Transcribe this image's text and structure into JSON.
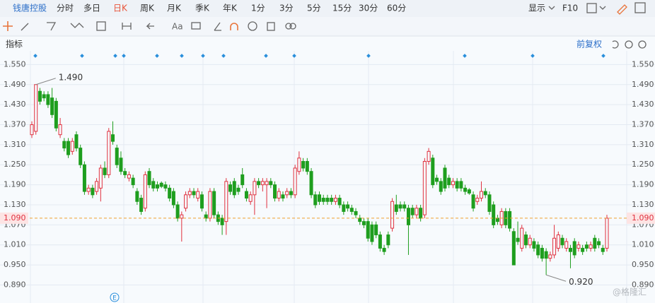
{
  "toolbar": {
    "stock": "钱唐控股",
    "periods": [
      "分时",
      "多日",
      "日K",
      "周K",
      "月K",
      "季K",
      "年K",
      "1分",
      "3分",
      "5分",
      "15分",
      "30分",
      "60分"
    ],
    "display": "显示",
    "f10": "F10",
    "text_tool": "Aa"
  },
  "indicator_bar": {
    "label": "指标",
    "adjust": "前复权"
  },
  "watermark": "@格隆汇",
  "event_marker": "E",
  "chart_data": {
    "type": "candlestick",
    "up_color": "#e0303e",
    "down_color": "#1e9e1e",
    "grid": true,
    "ylim": [
      0.836,
      1.591
    ],
    "yticks": [
      {
        "value": 0.89,
        "label": "0.890"
      },
      {
        "value": 0.95,
        "label": "0.950"
      },
      {
        "value": 1.01,
        "label": "1.010"
      },
      {
        "value": 1.07,
        "label": "1.070"
      },
      {
        "value": 1.13,
        "label": "1.130"
      },
      {
        "value": 1.19,
        "label": "1.190"
      },
      {
        "value": 1.25,
        "label": "1.250"
      },
      {
        "value": 1.31,
        "label": "1.310"
      },
      {
        "value": 1.37,
        "label": "1.370"
      },
      {
        "value": 1.43,
        "label": "1.430"
      },
      {
        "value": 1.49,
        "label": "1.490"
      },
      {
        "value": 1.55,
        "label": "1.550"
      }
    ],
    "last_price": {
      "value": 1.09,
      "label": "1.090"
    },
    "high_label": {
      "value": 1.49,
      "label": "1.490"
    },
    "low_label": {
      "value": 0.92,
      "label": "0.920"
    },
    "ohlc": [
      [
        1.34,
        1.38,
        1.33,
        1.37
      ],
      [
        1.35,
        1.49,
        1.34,
        1.49
      ],
      [
        1.47,
        1.48,
        1.43,
        1.44
      ],
      [
        1.46,
        1.47,
        1.44,
        1.45
      ],
      [
        1.46,
        1.47,
        1.42,
        1.43
      ],
      [
        1.45,
        1.48,
        1.39,
        1.4
      ],
      [
        1.44,
        1.45,
        1.35,
        1.36
      ],
      [
        1.34,
        1.39,
        1.33,
        1.37
      ],
      [
        1.32,
        1.33,
        1.29,
        1.3
      ],
      [
        1.32,
        1.33,
        1.27,
        1.28
      ],
      [
        1.29,
        1.33,
        1.28,
        1.32
      ],
      [
        1.34,
        1.35,
        1.29,
        1.3
      ],
      [
        1.3,
        1.31,
        1.24,
        1.25
      ],
      [
        1.25,
        1.26,
        1.16,
        1.17
      ],
      [
        1.17,
        1.19,
        1.16,
        1.18
      ],
      [
        1.18,
        1.19,
        1.15,
        1.16
      ],
      [
        1.17,
        1.21,
        1.16,
        1.2
      ],
      [
        1.18,
        1.25,
        1.14,
        1.24
      ],
      [
        1.24,
        1.26,
        1.21,
        1.22
      ],
      [
        1.22,
        1.36,
        1.21,
        1.35
      ],
      [
        1.34,
        1.38,
        1.31,
        1.32
      ],
      [
        1.3,
        1.31,
        1.24,
        1.25
      ],
      [
        1.27,
        1.29,
        1.22,
        1.23
      ],
      [
        1.23,
        1.24,
        1.21,
        1.22
      ],
      [
        1.21,
        1.23,
        1.2,
        1.22
      ],
      [
        1.21,
        1.22,
        1.18,
        1.19
      ],
      [
        1.17,
        1.18,
        1.13,
        1.14
      ],
      [
        1.15,
        1.16,
        1.1,
        1.11
      ],
      [
        1.12,
        1.23,
        1.11,
        1.22
      ],
      [
        1.23,
        1.24,
        1.18,
        1.19
      ],
      [
        1.2,
        1.21,
        1.17,
        1.18
      ],
      [
        1.19,
        1.2,
        1.17,
        1.18
      ],
      [
        1.195,
        1.2,
        1.18,
        1.185
      ],
      [
        1.19,
        1.2,
        1.17,
        1.18
      ],
      [
        1.18,
        1.19,
        1.14,
        1.15
      ],
      [
        1.17,
        1.18,
        1.12,
        1.13
      ],
      [
        1.13,
        1.14,
        1.08,
        1.09
      ],
      [
        1.09,
        1.11,
        1.02,
        1.1
      ],
      [
        1.12,
        1.17,
        1.11,
        1.16
      ],
      [
        1.16,
        1.18,
        1.15,
        1.17
      ],
      [
        1.17,
        1.18,
        1.15,
        1.16
      ],
      [
        1.15,
        1.18,
        1.14,
        1.17
      ],
      [
        1.16,
        1.17,
        1.11,
        1.12
      ],
      [
        1.1,
        1.11,
        1.08,
        1.09
      ],
      [
        1.09,
        1.18,
        1.08,
        1.17
      ],
      [
        1.17,
        1.18,
        1.09,
        1.1
      ],
      [
        1.1,
        1.11,
        1.07,
        1.08
      ],
      [
        1.09,
        1.1,
        1.04,
        1.07
      ],
      [
        1.08,
        1.21,
        1.04,
        1.2
      ],
      [
        1.19,
        1.2,
        1.16,
        1.17
      ],
      [
        1.2,
        1.21,
        1.15,
        1.16
      ],
      [
        1.18,
        1.19,
        1.16,
        1.17
      ],
      [
        1.22,
        1.24,
        1.18,
        1.19
      ],
      [
        1.17,
        1.18,
        1.14,
        1.15
      ],
      [
        1.14,
        1.17,
        1.13,
        1.16
      ],
      [
        1.16,
        1.21,
        1.1,
        1.2
      ],
      [
        1.2,
        1.21,
        1.18,
        1.19
      ],
      [
        1.19,
        1.21,
        1.17,
        1.2
      ],
      [
        1.19,
        1.21,
        1.12,
        1.2
      ],
      [
        1.2,
        1.21,
        1.18,
        1.19
      ],
      [
        1.19,
        1.2,
        1.14,
        1.15
      ],
      [
        1.15,
        1.18,
        1.14,
        1.17
      ],
      [
        1.16,
        1.17,
        1.14,
        1.15
      ],
      [
        1.16,
        1.18,
        1.15,
        1.17
      ],
      [
        1.17,
        1.18,
        1.15,
        1.16
      ],
      [
        1.16,
        1.25,
        1.15,
        1.24
      ],
      [
        1.23,
        1.29,
        1.22,
        1.27
      ],
      [
        1.26,
        1.27,
        1.23,
        1.24
      ],
      [
        1.26,
        1.27,
        1.22,
        1.23
      ],
      [
        1.23,
        1.24,
        1.15,
        1.16
      ],
      [
        1.16,
        1.17,
        1.12,
        1.13
      ],
      [
        1.16,
        1.17,
        1.13,
        1.14
      ],
      [
        1.15,
        1.16,
        1.13,
        1.14
      ],
      [
        1.15,
        1.16,
        1.13,
        1.14
      ],
      [
        1.15,
        1.16,
        1.13,
        1.14
      ],
      [
        1.14,
        1.16,
        1.13,
        1.15
      ],
      [
        1.15,
        1.16,
        1.12,
        1.13
      ],
      [
        1.13,
        1.14,
        1.1,
        1.11
      ],
      [
        1.13,
        1.14,
        1.11,
        1.12
      ],
      [
        1.12,
        1.13,
        1.1,
        1.11
      ],
      [
        1.11,
        1.12,
        1.09,
        1.1
      ],
      [
        1.09,
        1.1,
        1.07,
        1.08
      ],
      [
        1.08,
        1.09,
        1.06,
        1.07
      ],
      [
        1.08,
        1.09,
        1.02,
        1.03
      ],
      [
        1.07,
        1.08,
        1.01,
        1.02
      ],
      [
        1.07,
        1.08,
        1.03,
        1.04
      ],
      [
        1.04,
        1.05,
        0.99,
        1.0
      ],
      [
        1.0,
        1.01,
        0.98,
        0.99
      ],
      [
        1.04,
        1.05,
        1.0,
        1.01
      ],
      [
        1.06,
        1.15,
        1.05,
        1.14
      ],
      [
        1.13,
        1.16,
        1.1,
        1.11
      ],
      [
        1.13,
        1.14,
        1.11,
        1.12
      ],
      [
        1.13,
        1.14,
        1.11,
        1.12
      ],
      [
        1.12,
        1.13,
        0.98,
        1.07
      ],
      [
        1.12,
        1.13,
        1.09,
        1.1
      ],
      [
        1.1,
        1.13,
        1.09,
        1.12
      ],
      [
        1.12,
        1.13,
        1.08,
        1.09
      ],
      [
        1.1,
        1.27,
        1.09,
        1.26
      ],
      [
        1.26,
        1.3,
        1.25,
        1.29
      ],
      [
        1.27,
        1.28,
        1.18,
        1.19
      ],
      [
        1.21,
        1.22,
        1.19,
        1.2
      ],
      [
        1.2,
        1.21,
        1.16,
        1.17
      ],
      [
        1.24,
        1.25,
        1.17,
        1.18
      ],
      [
        1.21,
        1.22,
        1.18,
        1.19
      ],
      [
        1.19,
        1.21,
        1.18,
        1.2
      ],
      [
        1.2,
        1.21,
        1.17,
        1.18
      ],
      [
        1.2,
        1.21,
        1.17,
        1.18
      ],
      [
        1.18,
        1.19,
        1.16,
        1.17
      ],
      [
        1.175,
        1.18,
        1.16,
        1.165
      ],
      [
        1.16,
        1.17,
        1.11,
        1.12
      ],
      [
        1.14,
        1.16,
        1.13,
        1.15
      ],
      [
        1.15,
        1.2,
        1.14,
        1.17
      ],
      [
        1.17,
        1.18,
        1.15,
        1.16
      ],
      [
        1.16,
        1.17,
        1.1,
        1.11
      ],
      [
        1.13,
        1.14,
        1.06,
        1.07
      ],
      [
        1.09,
        1.1,
        1.07,
        1.08
      ],
      [
        1.07,
        1.12,
        1.06,
        1.11
      ],
      [
        1.11,
        1.12,
        1.06,
        1.07
      ],
      [
        1.11,
        1.12,
        1.05,
        1.06
      ],
      [
        1.05,
        1.06,
        0.95,
        0.95
      ],
      [
        1.03,
        1.08,
        1.01,
        1.02
      ],
      [
        1.0,
        1.07,
        0.99,
        1.06
      ],
      [
        1.04,
        1.05,
        1.0,
        1.01
      ],
      [
        1.01,
        1.04,
        1.0,
        1.03
      ],
      [
        1.02,
        1.03,
        0.99,
        1.0
      ],
      [
        1.01,
        1.02,
        0.97,
        0.98
      ],
      [
        1.0,
        1.01,
        0.96,
        0.97
      ],
      [
        0.99,
        1.0,
        0.92,
        0.97
      ],
      [
        0.97,
        0.99,
        0.96,
        0.98
      ],
      [
        0.98,
        1.07,
        0.97,
        1.03
      ],
      [
        1.0,
        1.05,
        0.99,
        1.04
      ],
      [
        1.03,
        1.04,
        1.0,
        1.01
      ],
      [
        1.0,
        1.03,
        0.99,
        1.02
      ],
      [
        1.0,
        1.01,
        0.94,
        0.99
      ],
      [
        1.02,
        1.03,
        0.97,
        0.98
      ],
      [
        1.0,
        1.02,
        0.99,
        1.01
      ],
      [
        1.0,
        1.01,
        0.98,
        0.99
      ],
      [
        1.01,
        1.02,
        0.99,
        1.0
      ],
      [
        1.0,
        1.02,
        0.99,
        1.01
      ],
      [
        1.03,
        1.04,
        0.99,
        1.0
      ],
      [
        1.02,
        1.03,
        1.0,
        1.01
      ],
      [
        1.0,
        1.01,
        0.98,
        0.99
      ],
      [
        1.0,
        1.1,
        0.99,
        1.09
      ]
    ]
  }
}
